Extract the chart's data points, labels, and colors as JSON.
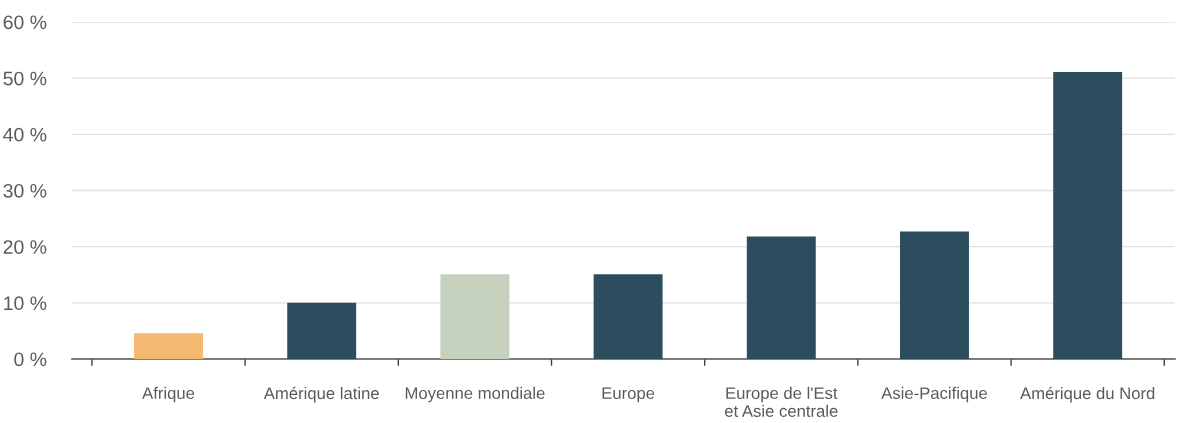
{
  "chart_data": {
    "type": "bar",
    "categories": [
      "Afrique",
      "Amérique latine",
      "Moyenne mondiale",
      "Europe",
      "Europe de l'Est\net Asie centrale",
      "Asie-Pacifique",
      "Amérique du Nord"
    ],
    "values": [
      4.6,
      10,
      15.1,
      15.1,
      21.8,
      22.7,
      51.1
    ],
    "colors": [
      "#f4b971",
      "#2b4d5d",
      "#c5d0bd",
      "#2b4d5d",
      "#2b4d5d",
      "#2b4d5d",
      "#2b4d5d"
    ],
    "ylim": [
      0,
      60
    ],
    "yticks": [
      {
        "value": 0,
        "label": "0 %"
      },
      {
        "value": 10,
        "label": "10 %"
      },
      {
        "value": 20,
        "label": "20 %"
      },
      {
        "value": 30,
        "label": "30 %"
      },
      {
        "value": 40,
        "label": "40 %"
      },
      {
        "value": 50,
        "label": "50 %"
      },
      {
        "value": 60,
        "label": "60 %"
      }
    ],
    "grid": "y"
  }
}
